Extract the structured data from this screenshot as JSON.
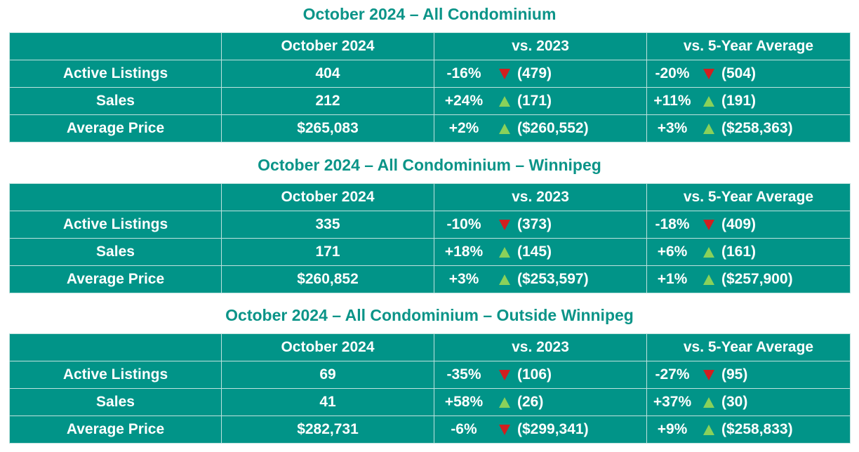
{
  "colors": {
    "title": "#0b9488",
    "table_bg": "#019488",
    "up": "#8ad15a",
    "down": "#d11f1f"
  },
  "sections": [
    {
      "title": "October 2024 – All Condominium",
      "headers": [
        "",
        "October 2024",
        "vs. 2023",
        "vs. 5-Year Average"
      ],
      "rows": [
        {
          "label": "Active Listings",
          "value": "404",
          "vs_prev": {
            "pct": "-16%",
            "dir": "down",
            "ref": "(479)"
          },
          "vs_avg": {
            "pct": "-20%",
            "dir": "down",
            "ref": "(504)"
          }
        },
        {
          "label": "Sales",
          "value": "212",
          "vs_prev": {
            "pct": "+24%",
            "dir": "up",
            "ref": "(171)"
          },
          "vs_avg": {
            "pct": "+11%",
            "dir": "up",
            "ref": "(191)"
          }
        },
        {
          "label": "Average Price",
          "value": "$265,083",
          "vs_prev": {
            "pct": "+2%",
            "dir": "up",
            "ref": "($260,552)"
          },
          "vs_avg": {
            "pct": "+3%",
            "dir": "up",
            "ref": "($258,363)"
          }
        }
      ]
    },
    {
      "title": "October 2024 – All Condominium – Winnipeg",
      "headers": [
        "",
        "October 2024",
        "vs. 2023",
        "vs. 5-Year Average"
      ],
      "rows": [
        {
          "label": "Active Listings",
          "value": "335",
          "vs_prev": {
            "pct": "-10%",
            "dir": "down",
            "ref": "(373)"
          },
          "vs_avg": {
            "pct": "-18%",
            "dir": "down",
            "ref": "(409)"
          }
        },
        {
          "label": "Sales",
          "value": "171",
          "vs_prev": {
            "pct": "+18%",
            "dir": "up",
            "ref": "(145)"
          },
          "vs_avg": {
            "pct": "+6%",
            "dir": "up",
            "ref": "(161)"
          }
        },
        {
          "label": "Average Price",
          "value": "$260,852",
          "vs_prev": {
            "pct": "+3%",
            "dir": "up",
            "ref": "($253,597)"
          },
          "vs_avg": {
            "pct": "+1%",
            "dir": "up",
            "ref": "($257,900)"
          }
        }
      ]
    },
    {
      "title": "October 2024 – All Condominium – Outside Winnipeg",
      "headers": [
        "",
        "October 2024",
        "vs. 2023",
        "vs. 5-Year Average"
      ],
      "rows": [
        {
          "label": "Active Listings",
          "value": "69",
          "vs_prev": {
            "pct": "-35%",
            "dir": "down",
            "ref": "(106)"
          },
          "vs_avg": {
            "pct": "-27%",
            "dir": "down",
            "ref": "(95)"
          }
        },
        {
          "label": "Sales",
          "value": "41",
          "vs_prev": {
            "pct": "+58%",
            "dir": "up",
            "ref": "(26)"
          },
          "vs_avg": {
            "pct": "+37%",
            "dir": "up",
            "ref": "(30)"
          }
        },
        {
          "label": "Average Price",
          "value": "$282,731",
          "vs_prev": {
            "pct": "-6%",
            "dir": "down",
            "ref": "($299,341)"
          },
          "vs_avg": {
            "pct": "+9%",
            "dir": "up",
            "ref": "($258,833)"
          }
        }
      ]
    }
  ]
}
